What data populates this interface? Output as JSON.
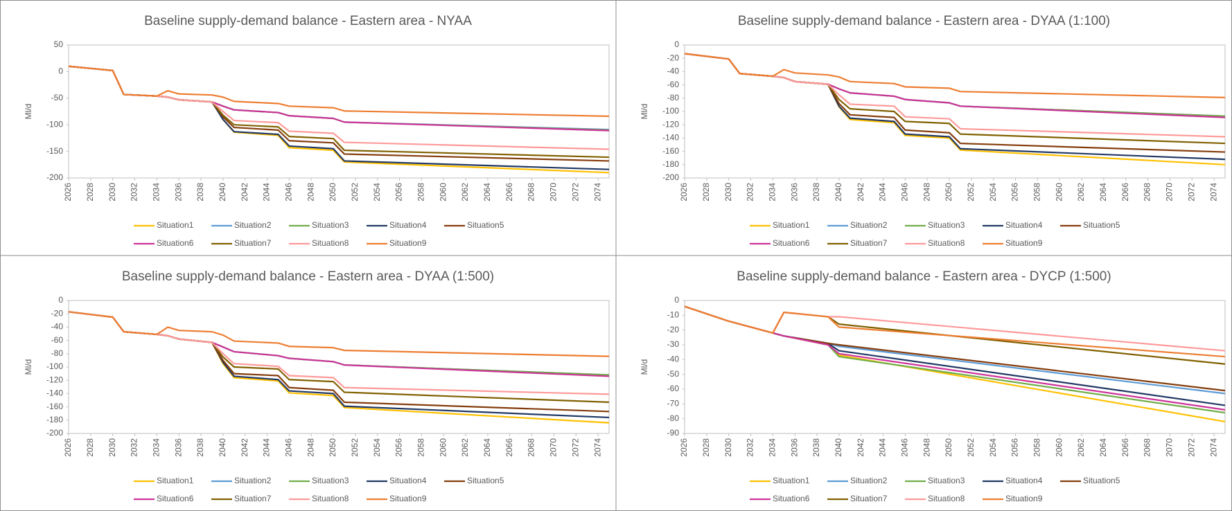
{
  "chart_data": [
    {
      "type": "line",
      "title": "Baseline supply-demand balance - Eastern area - NYAA",
      "y_label": "Ml/d",
      "grid": false,
      "x": [
        2026,
        2030,
        2031,
        2034,
        2035,
        2036,
        2039,
        2040,
        2041,
        2045,
        2046,
        2050,
        2051,
        2075
      ],
      "xlim": [
        2026,
        2075
      ],
      "xticks": [
        2026,
        2028,
        2030,
        2032,
        2034,
        2036,
        2038,
        2040,
        2042,
        2044,
        2046,
        2048,
        2050,
        2052,
        2054,
        2056,
        2058,
        2060,
        2062,
        2064,
        2066,
        2068,
        2070,
        2072,
        2074
      ],
      "ylim": [
        -200,
        50
      ],
      "yticks": [
        -200,
        -150,
        -100,
        -50,
        0,
        50
      ],
      "series": [
        {
          "name": "Situation1",
          "color": "#ffc000",
          "values": [
            10,
            2,
            -43,
            -46,
            -48,
            -53,
            -57,
            -90,
            -114,
            -120,
            -143,
            -148,
            -170,
            -190
          ]
        },
        {
          "name": "Situation2",
          "color": "#5b9bd5",
          "values": [
            10,
            2,
            -43,
            -46,
            -48,
            -53,
            -57,
            -65,
            -72,
            -77,
            -83,
            -88,
            -95,
            -109
          ]
        },
        {
          "name": "Situation3",
          "color": "#70ad47",
          "values": [
            10,
            2,
            -43,
            -46,
            -48,
            -53,
            -57,
            -65,
            -72,
            -77,
            -83,
            -88,
            -95,
            -110
          ]
        },
        {
          "name": "Situation4",
          "color": "#203864",
          "values": [
            10,
            2,
            -43,
            -46,
            -48,
            -53,
            -57,
            -90,
            -113,
            -118,
            -140,
            -145,
            -168,
            -184
          ]
        },
        {
          "name": "Situation5",
          "color": "#843c0c",
          "values": [
            10,
            2,
            -43,
            -46,
            -48,
            -53,
            -57,
            -85,
            -105,
            -110,
            -130,
            -134,
            -155,
            -168
          ]
        },
        {
          "name": "Situation6",
          "color": "#cc3399",
          "values": [
            10,
            2,
            -43,
            -46,
            -48,
            -53,
            -57,
            -65,
            -72,
            -77,
            -83,
            -88,
            -95,
            -111
          ]
        },
        {
          "name": "Situation7",
          "color": "#806000",
          "values": [
            10,
            2,
            -43,
            -46,
            -48,
            -53,
            -57,
            -82,
            -100,
            -104,
            -122,
            -126,
            -148,
            -161
          ]
        },
        {
          "name": "Situation8",
          "color": "#ff9999",
          "values": [
            10,
            2,
            -43,
            -46,
            -48,
            -53,
            -57,
            -75,
            -92,
            -96,
            -112,
            -116,
            -133,
            -146
          ]
        },
        {
          "name": "Situation9",
          "color": "#ed7d31",
          "values": [
            10,
            2,
            -43,
            -46,
            -36,
            -42,
            -44,
            -48,
            -56,
            -60,
            -65,
            -68,
            -74,
            -84
          ]
        }
      ]
    },
    {
      "type": "line",
      "title": "Baseline supply-demand balance - Eastern area - DYAA (1:100)",
      "y_label": "Ml/d",
      "grid": false,
      "x": [
        2026,
        2030,
        2031,
        2034,
        2035,
        2036,
        2039,
        2040,
        2041,
        2045,
        2046,
        2050,
        2051,
        2075
      ],
      "xlim": [
        2026,
        2075
      ],
      "xticks": [
        2026,
        2028,
        2030,
        2032,
        2034,
        2036,
        2038,
        2040,
        2042,
        2044,
        2046,
        2048,
        2050,
        2052,
        2054,
        2056,
        2058,
        2060,
        2062,
        2064,
        2066,
        2068,
        2070,
        2072,
        2074
      ],
      "ylim": [
        -200,
        0
      ],
      "yticks": [
        -200,
        -180,
        -160,
        -140,
        -120,
        -100,
        -80,
        -60,
        -40,
        -20,
        0
      ],
      "series": [
        {
          "name": "Situation1",
          "color": "#ffc000",
          "values": [
            -13,
            -21,
            -43,
            -47,
            -49,
            -55,
            -59,
            -93,
            -112,
            -117,
            -136,
            -140,
            -158,
            -180
          ]
        },
        {
          "name": "Situation2",
          "color": "#5b9bd5",
          "values": [
            -13,
            -21,
            -43,
            -47,
            -49,
            -55,
            -59,
            -66,
            -72,
            -77,
            -82,
            -87,
            -92,
            -107
          ]
        },
        {
          "name": "Situation3",
          "color": "#70ad47",
          "values": [
            -13,
            -21,
            -43,
            -47,
            -49,
            -55,
            -59,
            -66,
            -72,
            -77,
            -82,
            -87,
            -92,
            -107
          ]
        },
        {
          "name": "Situation4",
          "color": "#203864",
          "values": [
            -13,
            -21,
            -43,
            -47,
            -49,
            -55,
            -59,
            -92,
            -110,
            -115,
            -134,
            -138,
            -156,
            -172
          ]
        },
        {
          "name": "Situation5",
          "color": "#843c0c",
          "values": [
            -13,
            -21,
            -43,
            -47,
            -49,
            -55,
            -59,
            -88,
            -105,
            -109,
            -128,
            -132,
            -148,
            -161
          ]
        },
        {
          "name": "Situation6",
          "color": "#cc3399",
          "values": [
            -13,
            -21,
            -43,
            -47,
            -49,
            -55,
            -59,
            -66,
            -72,
            -77,
            -82,
            -87,
            -92,
            -109
          ]
        },
        {
          "name": "Situation7",
          "color": "#806000",
          "values": [
            -13,
            -21,
            -43,
            -47,
            -49,
            -55,
            -59,
            -82,
            -96,
            -100,
            -115,
            -118,
            -134,
            -148
          ]
        },
        {
          "name": "Situation8",
          "color": "#ff9999",
          "values": [
            -13,
            -21,
            -43,
            -47,
            -49,
            -55,
            -59,
            -75,
            -89,
            -92,
            -108,
            -111,
            -126,
            -138
          ]
        },
        {
          "name": "Situation9",
          "color": "#ed7d31",
          "values": [
            -13,
            -21,
            -43,
            -47,
            -37,
            -42,
            -45,
            -48,
            -55,
            -58,
            -63,
            -65,
            -70,
            -79
          ]
        }
      ]
    },
    {
      "type": "line",
      "title": "Baseline supply-demand balance - Eastern area - DYAA (1:500)",
      "y_label": "Ml/d",
      "grid": false,
      "x": [
        2026,
        2030,
        2031,
        2034,
        2035,
        2036,
        2039,
        2040,
        2041,
        2045,
        2046,
        2050,
        2051,
        2075
      ],
      "xlim": [
        2026,
        2075
      ],
      "xticks": [
        2026,
        2028,
        2030,
        2032,
        2034,
        2036,
        2038,
        2040,
        2042,
        2044,
        2046,
        2048,
        2050,
        2052,
        2054,
        2056,
        2058,
        2060,
        2062,
        2064,
        2066,
        2068,
        2070,
        2072,
        2074
      ],
      "ylim": [
        -200,
        0
      ],
      "yticks": [
        -200,
        -180,
        -160,
        -140,
        -120,
        -100,
        -80,
        -60,
        -40,
        -20,
        0
      ],
      "series": [
        {
          "name": "Situation1",
          "color": "#ffc000",
          "values": [
            -17,
            -25,
            -47,
            -51,
            -53,
            -58,
            -63,
            -95,
            -116,
            -121,
            -139,
            -143,
            -161,
            -184
          ]
        },
        {
          "name": "Situation2",
          "color": "#5b9bd5",
          "values": [
            -17,
            -25,
            -47,
            -51,
            -53,
            -58,
            -63,
            -70,
            -77,
            -83,
            -87,
            -92,
            -97,
            -112
          ]
        },
        {
          "name": "Situation3",
          "color": "#70ad47",
          "values": [
            -17,
            -25,
            -47,
            -51,
            -53,
            -58,
            -63,
            -70,
            -77,
            -83,
            -87,
            -92,
            -97,
            -112
          ]
        },
        {
          "name": "Situation4",
          "color": "#203864",
          "values": [
            -17,
            -25,
            -47,
            -51,
            -53,
            -58,
            -63,
            -93,
            -114,
            -119,
            -136,
            -140,
            -159,
            -176
          ]
        },
        {
          "name": "Situation5",
          "color": "#843c0c",
          "values": [
            -17,
            -25,
            -47,
            -51,
            -53,
            -58,
            -63,
            -90,
            -110,
            -113,
            -131,
            -135,
            -153,
            -167
          ]
        },
        {
          "name": "Situation6",
          "color": "#cc3399",
          "values": [
            -17,
            -25,
            -47,
            -51,
            -53,
            -58,
            -63,
            -70,
            -77,
            -83,
            -87,
            -92,
            -97,
            -114
          ]
        },
        {
          "name": "Situation7",
          "color": "#806000",
          "values": [
            -17,
            -25,
            -47,
            -51,
            -53,
            -58,
            -63,
            -85,
            -100,
            -103,
            -119,
            -122,
            -138,
            -153
          ]
        },
        {
          "name": "Situation8",
          "color": "#ff9999",
          "values": [
            -17,
            -25,
            -47,
            -51,
            -53,
            -58,
            -63,
            -80,
            -95,
            -99,
            -113,
            -116,
            -131,
            -141
          ]
        },
        {
          "name": "Situation9",
          "color": "#ed7d31",
          "values": [
            -17,
            -25,
            -47,
            -51,
            -40,
            -45,
            -47,
            -52,
            -61,
            -64,
            -69,
            -71,
            -75,
            -84
          ]
        }
      ]
    },
    {
      "type": "line",
      "title": "Baseline supply-demand balance - Eastern area - DYCP (1:500)",
      "y_label": "Ml/d",
      "grid": false,
      "x": [
        2026,
        2030,
        2034,
        2035,
        2039,
        2040,
        2075
      ],
      "xlim": [
        2026,
        2075
      ],
      "xticks": [
        2026,
        2028,
        2030,
        2032,
        2034,
        2036,
        2038,
        2040,
        2042,
        2044,
        2046,
        2048,
        2050,
        2052,
        2054,
        2056,
        2058,
        2060,
        2062,
        2064,
        2066,
        2068,
        2070,
        2072,
        2074
      ],
      "ylim": [
        -90,
        0
      ],
      "yticks": [
        -90,
        -80,
        -70,
        -60,
        -50,
        -40,
        -30,
        -20,
        -10,
        0
      ],
      "series": [
        {
          "name": "Situation1",
          "color": "#ffc000",
          "values": [
            -4,
            -14,
            -22,
            -24,
            -30,
            -37,
            -82
          ]
        },
        {
          "name": "Situation2",
          "color": "#5b9bd5",
          "values": [
            -4,
            -14,
            -22,
            -24,
            -29,
            -31,
            -63
          ]
        },
        {
          "name": "Situation3",
          "color": "#70ad47",
          "values": [
            -4,
            -14,
            -22,
            -24,
            -30,
            -38,
            -76
          ]
        },
        {
          "name": "Situation4",
          "color": "#203864",
          "values": [
            -4,
            -14,
            -22,
            -24,
            -29,
            -34,
            -71
          ]
        },
        {
          "name": "Situation5",
          "color": "#843c0c",
          "values": [
            -4,
            -14,
            -22,
            -24,
            -29,
            -30,
            -61
          ]
        },
        {
          "name": "Situation6",
          "color": "#cc3399",
          "values": [
            -4,
            -14,
            -22,
            -24,
            -30,
            -36,
            -74
          ]
        },
        {
          "name": "Situation7",
          "color": "#806000",
          "values": [
            -4,
            -14,
            -22,
            -8,
            -11,
            -16,
            -43
          ]
        },
        {
          "name": "Situation8",
          "color": "#ff9999",
          "values": [
            -4,
            -14,
            -22,
            -8,
            -11,
            -11,
            -34
          ]
        },
        {
          "name": "Situation9",
          "color": "#ed7d31",
          "values": [
            -4,
            -14,
            -22,
            -8,
            -11,
            -18,
            -38
          ]
        }
      ]
    }
  ]
}
